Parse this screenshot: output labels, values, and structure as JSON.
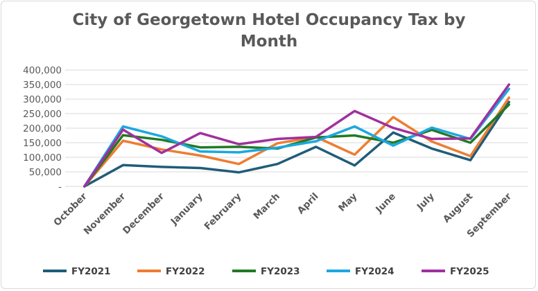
{
  "chart_data": {
    "type": "line",
    "title_lines": [
      "City of Georgetown Hotel Occupancy Tax by",
      "Month"
    ],
    "xlabel": "",
    "ylabel": "",
    "ylim": [
      0,
      400000
    ],
    "yticks": [
      {
        "value": 0,
        "label": "-"
      },
      {
        "value": 50000,
        "label": "50,000"
      },
      {
        "value": 100000,
        "label": "100,000"
      },
      {
        "value": 150000,
        "label": "150,000"
      },
      {
        "value": 200000,
        "label": "200,000"
      },
      {
        "value": 250000,
        "label": "250,000"
      },
      {
        "value": 300000,
        "label": "300,000"
      },
      {
        "value": 350000,
        "label": "350,000"
      },
      {
        "value": 400000,
        "label": "400,000"
      }
    ],
    "grid": true,
    "legend_position": "bottom",
    "categories": [
      "October",
      "November",
      "December",
      "January",
      "February",
      "March",
      "April",
      "May",
      "June",
      "July",
      "August",
      "September"
    ],
    "series": [
      {
        "name": "FY2021",
        "color": "#1f5c7a",
        "values": [
          0,
          73000,
          67000,
          63000,
          48000,
          77000,
          136000,
          72000,
          185000,
          130000,
          90000,
          290000
        ]
      },
      {
        "name": "FY2022",
        "color": "#ed7d31",
        "values": [
          0,
          157000,
          127000,
          106000,
          77000,
          148000,
          170000,
          109000,
          238000,
          154000,
          104000,
          305000
        ]
      },
      {
        "name": "FY2023",
        "color": "#217a24",
        "values": [
          0,
          176000,
          160000,
          134000,
          136000,
          130000,
          168000,
          175000,
          150000,
          194000,
          150000,
          281000
        ]
      },
      {
        "name": "FY2024",
        "color": "#1ba8e0",
        "values": [
          0,
          206000,
          172000,
          120000,
          117000,
          133000,
          155000,
          206000,
          140000,
          202000,
          163000,
          335000
        ]
      },
      {
        "name": "FY2025",
        "color": "#a0309e",
        "values": [
          0,
          195000,
          115000,
          183000,
          145000,
          163000,
          170000,
          259000,
          201000,
          163000,
          165000,
          350000
        ]
      }
    ]
  }
}
